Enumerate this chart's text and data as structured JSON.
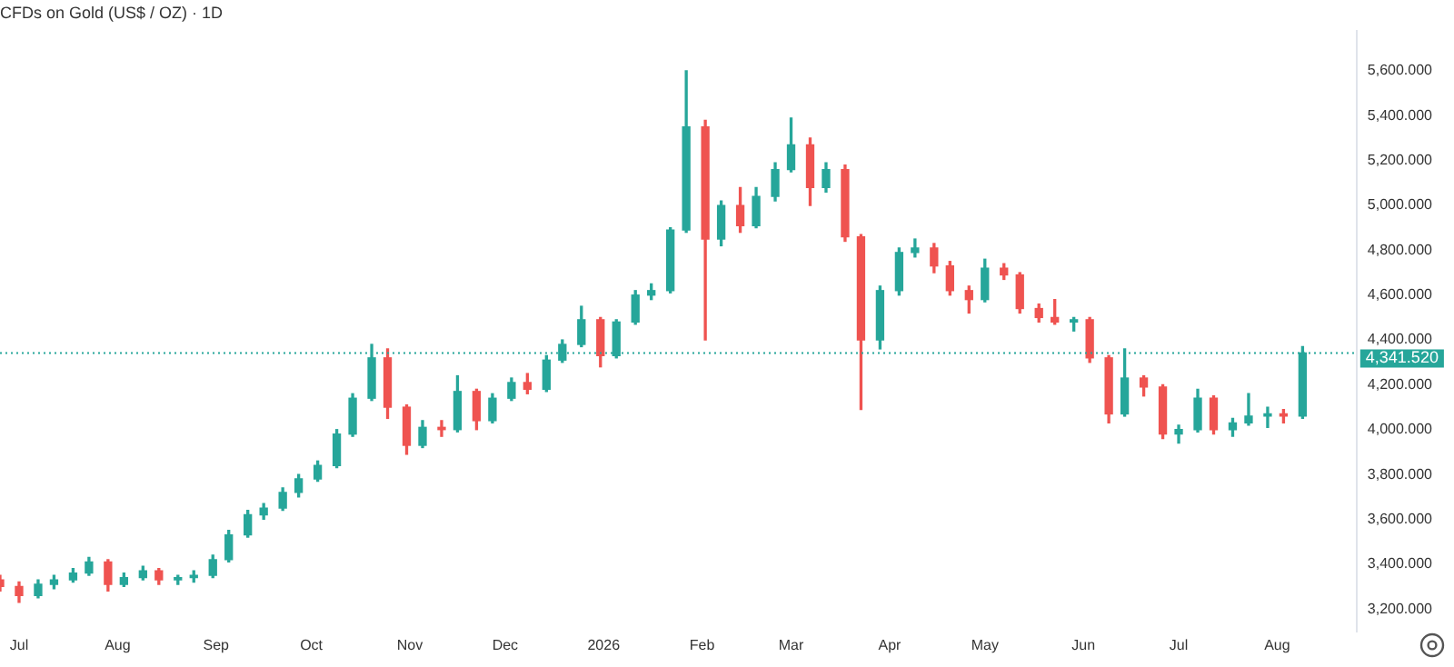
{
  "chart_data": {
    "type": "candlestick",
    "title": "CFDs on Gold (US$ / OZ) · 1D",
    "x": [
      "2025-06-25",
      "2025-07-01",
      "2025-07-07",
      "2025-07-12",
      "2025-07-18",
      "2025-07-23",
      "2025-07-29",
      "2025-08-03",
      "2025-08-09",
      "2025-08-14",
      "2025-08-20",
      "2025-08-25",
      "2025-08-31",
      "2025-09-05",
      "2025-09-11",
      "2025-09-16",
      "2025-09-22",
      "2025-09-27",
      "2025-10-03",
      "2025-10-09",
      "2025-10-14",
      "2025-10-20",
      "2025-10-25",
      "2025-10-31",
      "2025-11-05",
      "2025-11-11",
      "2025-11-16",
      "2025-11-22",
      "2025-11-27",
      "2025-12-03",
      "2025-12-08",
      "2025-12-14",
      "2025-12-19",
      "2025-12-25",
      "2025-12-31",
      "2026-01-05",
      "2026-01-11",
      "2026-01-16",
      "2026-01-22",
      "2026-01-27",
      "2026-02-02",
      "2026-02-07",
      "2026-02-13",
      "2026-02-18",
      "2026-02-24",
      "2026-03-01",
      "2026-03-07",
      "2026-03-12",
      "2026-03-18",
      "2026-03-23",
      "2026-03-29",
      "2026-04-04",
      "2026-04-09",
      "2026-04-15",
      "2026-04-20",
      "2026-04-26",
      "2026-05-01",
      "2026-05-07",
      "2026-05-12",
      "2026-05-18",
      "2026-05-23",
      "2026-05-29",
      "2026-06-03",
      "2026-06-09",
      "2026-06-14",
      "2026-06-20",
      "2026-06-26",
      "2026-07-01",
      "2026-07-07",
      "2026-07-12",
      "2026-07-18",
      "2026-07-23",
      "2026-07-29",
      "2026-08-03",
      "2026-08-09"
    ],
    "ohlc": [
      [
        3330,
        3350,
        3280,
        3300
      ],
      [
        3300,
        3320,
        3230,
        3260
      ],
      [
        3260,
        3330,
        3250,
        3310
      ],
      [
        3310,
        3350,
        3290,
        3330
      ],
      [
        3330,
        3380,
        3320,
        3360
      ],
      [
        3360,
        3430,
        3350,
        3410
      ],
      [
        3410,
        3420,
        3280,
        3310
      ],
      [
        3310,
        3360,
        3300,
        3340
      ],
      [
        3340,
        3390,
        3330,
        3370
      ],
      [
        3370,
        3380,
        3310,
        3330
      ],
      [
        3330,
        3350,
        3310,
        3340
      ],
      [
        3340,
        3370,
        3320,
        3350
      ],
      [
        3350,
        3440,
        3340,
        3420
      ],
      [
        3420,
        3550,
        3410,
        3530
      ],
      [
        3530,
        3640,
        3520,
        3620
      ],
      [
        3620,
        3670,
        3600,
        3650
      ],
      [
        3650,
        3740,
        3640,
        3720
      ],
      [
        3720,
        3800,
        3700,
        3780
      ],
      [
        3780,
        3860,
        3770,
        3840
      ],
      [
        3840,
        4000,
        3830,
        3980
      ],
      [
        3980,
        4160,
        3970,
        4140
      ],
      [
        4140,
        4380,
        4130,
        4320
      ],
      [
        4320,
        4360,
        4050,
        4100
      ],
      [
        4100,
        4110,
        3890,
        3930
      ],
      [
        3930,
        4040,
        3920,
        4010
      ],
      [
        4010,
        4040,
        3970,
        4000
      ],
      [
        4000,
        4240,
        3990,
        4170
      ],
      [
        4170,
        4180,
        4000,
        4040
      ],
      [
        4040,
        4160,
        4030,
        4140
      ],
      [
        4140,
        4230,
        4130,
        4210
      ],
      [
        4210,
        4250,
        4160,
        4180
      ],
      [
        4180,
        4330,
        4170,
        4310
      ],
      [
        4310,
        4400,
        4300,
        4380
      ],
      [
        4380,
        4550,
        4370,
        4490
      ],
      [
        4490,
        4500,
        4280,
        4330
      ],
      [
        4330,
        4490,
        4320,
        4480
      ],
      [
        4480,
        4620,
        4470,
        4600
      ],
      [
        4600,
        4650,
        4580,
        4620
      ],
      [
        4620,
        4900,
        4610,
        4890
      ],
      [
        4890,
        5600,
        4880,
        5350
      ],
      [
        5350,
        5380,
        4400,
        4850
      ],
      [
        4850,
        5020,
        4820,
        5000
      ],
      [
        5000,
        5080,
        4880,
        4910
      ],
      [
        4910,
        5080,
        4900,
        5040
      ],
      [
        5040,
        5190,
        5020,
        5160
      ],
      [
        5160,
        5390,
        5150,
        5270
      ],
      [
        5270,
        5300,
        5000,
        5080
      ],
      [
        5080,
        5190,
        5060,
        5160
      ],
      [
        5160,
        5180,
        4840,
        4860
      ],
      [
        4860,
        4870,
        4090,
        4400
      ],
      [
        4400,
        4640,
        4360,
        4620
      ],
      [
        4620,
        4810,
        4600,
        4790
      ],
      [
        4790,
        4850,
        4770,
        4810
      ],
      [
        4810,
        4830,
        4700,
        4730
      ],
      [
        4730,
        4750,
        4600,
        4620
      ],
      [
        4620,
        4640,
        4520,
        4580
      ],
      [
        4580,
        4760,
        4570,
        4720
      ],
      [
        4720,
        4740,
        4670,
        4690
      ],
      [
        4690,
        4700,
        4520,
        4540
      ],
      [
        4540,
        4560,
        4480,
        4500
      ],
      [
        4500,
        4580,
        4470,
        4480
      ],
      [
        4480,
        4500,
        4440,
        4490
      ],
      [
        4490,
        4500,
        4300,
        4320
      ],
      [
        4320,
        4330,
        4030,
        4070
      ],
      [
        4070,
        4360,
        4060,
        4230
      ],
      [
        4230,
        4240,
        4150,
        4190
      ],
      [
        4190,
        4200,
        3960,
        3980
      ],
      [
        3980,
        4020,
        3940,
        4000
      ],
      [
        4000,
        4180,
        3990,
        4140
      ],
      [
        4140,
        4150,
        3980,
        4000
      ],
      [
        4000,
        4050,
        3970,
        4030
      ],
      [
        4030,
        4160,
        4020,
        4060
      ],
      [
        4060,
        4100,
        4010,
        4070
      ],
      [
        4070,
        4090,
        4030,
        4060
      ],
      [
        4060,
        4370,
        4050,
        4341.52
      ]
    ],
    "colors": [
      "#ef5350",
      "#ef5350",
      "#26a69a",
      "#26a69a",
      "#26a69a",
      "#26a69a",
      "#ef5350",
      "#26a69a",
      "#26a69a",
      "#ef5350",
      "#26a69a",
      "#26a69a",
      "#26a69a",
      "#26a69a",
      "#26a69a",
      "#26a69a",
      "#26a69a",
      "#26a69a",
      "#26a69a",
      "#26a69a",
      "#26a69a",
      "#26a69a",
      "#ef5350",
      "#ef5350",
      "#26a69a",
      "#ef5350",
      "#26a69a",
      "#ef5350",
      "#26a69a",
      "#26a69a",
      "#ef5350",
      "#26a69a",
      "#26a69a",
      "#26a69a",
      "#ef5350",
      "#26a69a",
      "#26a69a",
      "#26a69a",
      "#26a69a",
      "#26a69a",
      "#ef5350",
      "#26a69a",
      "#ef5350",
      "#26a69a",
      "#26a69a",
      "#26a69a",
      "#ef5350",
      "#26a69a",
      "#ef5350",
      "#ef5350",
      "#26a69a",
      "#26a69a",
      "#26a69a",
      "#ef5350",
      "#ef5350",
      "#ef5350",
      "#26a69a",
      "#ef5350",
      "#ef5350",
      "#ef5350",
      "#ef5350",
      "#26a69a",
      "#ef5350",
      "#ef5350",
      "#26a69a",
      "#ef5350",
      "#ef5350",
      "#26a69a",
      "#26a69a",
      "#ef5350",
      "#26a69a",
      "#26a69a",
      "#26a69a",
      "#ef5350",
      "#26a69a"
    ],
    "xlim": [
      "2025-06-25",
      "2026-08-26"
    ],
    "xticks": [
      {
        "value": "2025-07-01",
        "label": "Jul"
      },
      {
        "value": "2025-08-01",
        "label": "Aug"
      },
      {
        "value": "2025-09-01",
        "label": "Sep"
      },
      {
        "value": "2025-10-01",
        "label": "Oct"
      },
      {
        "value": "2025-11-01",
        "label": "Nov"
      },
      {
        "value": "2025-12-01",
        "label": "Dec"
      },
      {
        "value": "2026-01-01",
        "label": "2026"
      },
      {
        "value": "2026-02-01",
        "label": "Feb"
      },
      {
        "value": "2026-03-01",
        "label": "Mar"
      },
      {
        "value": "2026-04-01",
        "label": "Apr"
      },
      {
        "value": "2026-05-01",
        "label": "May"
      },
      {
        "value": "2026-06-01",
        "label": "Jun"
      },
      {
        "value": "2026-07-01",
        "label": "Jul"
      },
      {
        "value": "2026-08-01",
        "label": "Aug"
      }
    ],
    "ylim": [
      3100,
      5780
    ],
    "yticks": [
      {
        "value": 3200,
        "label": "3,200.000"
      },
      {
        "value": 3400,
        "label": "3,400.000"
      },
      {
        "value": 3600,
        "label": "3,600.000"
      },
      {
        "value": 3800,
        "label": "3,800.000"
      },
      {
        "value": 4000,
        "label": "4,000.000"
      },
      {
        "value": 4200,
        "label": "4,200.000"
      },
      {
        "value": 4400,
        "label": "4,400.000"
      },
      {
        "value": 4600,
        "label": "4,600.000"
      },
      {
        "value": 4800,
        "label": "4,800.000"
      },
      {
        "value": 5000,
        "label": "5,000.000"
      },
      {
        "value": 5200,
        "label": "5,200.000"
      },
      {
        "value": 5400,
        "label": "5,400.000"
      },
      {
        "value": 5600,
        "label": "5,600.000"
      }
    ],
    "ref_lines": [
      {
        "axis": "y",
        "value": 4341.52,
        "label": "4,341.520",
        "color": "#26a69a",
        "line_style": "dotted"
      }
    ]
  }
}
